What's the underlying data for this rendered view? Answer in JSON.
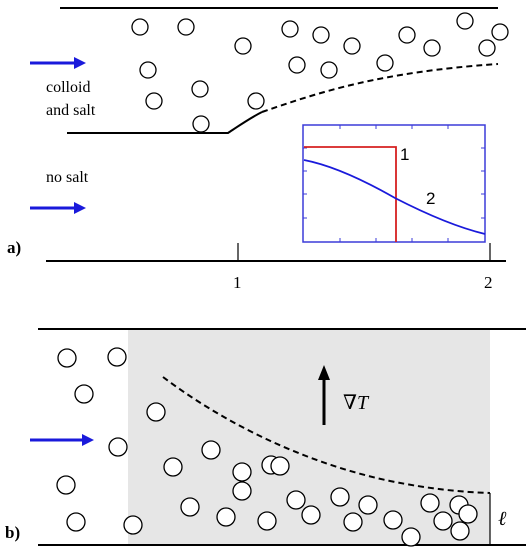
{
  "panel_a": {
    "label": "a)",
    "inflow_top_label_line1": "colloid",
    "inflow_top_label_line2": "and salt",
    "inflow_bottom_label": "no salt",
    "axis_tick_1": "1",
    "axis_tick_2": "2",
    "inset": {
      "curve_1_label": "1",
      "curve_2_label": "2",
      "curve_1_color": "#d62020",
      "curve_2_color": "#1a1adb"
    }
  },
  "panel_b": {
    "label": "b)",
    "gradient_label": "∇T",
    "length_label": "ℓ",
    "shaded_region_color": "#e6e6e6"
  },
  "colors": {
    "flow_arrow": "#1a1adb",
    "inset_frame": "#3b3bd9"
  }
}
